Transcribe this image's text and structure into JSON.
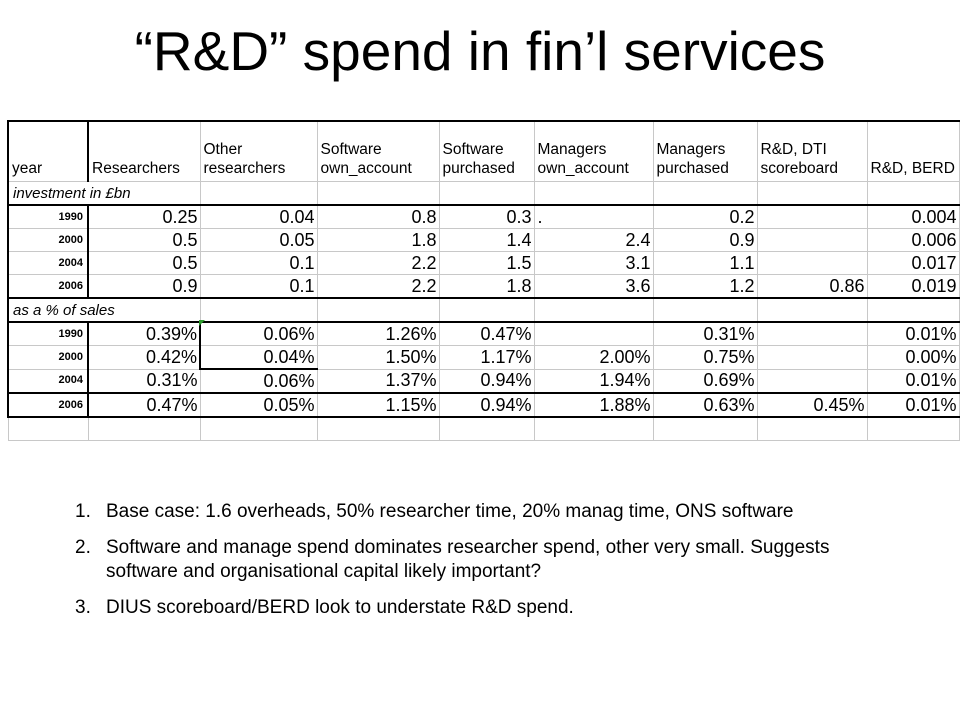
{
  "title": "“R&D” spend in fin’l services",
  "table": {
    "headers": [
      "year",
      "Researchers",
      "Other researchers",
      "Software own_account",
      "Software purchased",
      "Managers own_account",
      "Managers purchased",
      "R&D, DTI scoreboard",
      "R&D, BERD"
    ],
    "sections": [
      {
        "label": "investment in £bn",
        "rows": [
          [
            "1990",
            "0.25",
            "0.04",
            "0.8",
            "0.3",
            ".",
            "0.2",
            "",
            "0.004"
          ],
          [
            "2000",
            "0.5",
            "0.05",
            "1.8",
            "1.4",
            "2.4",
            "0.9",
            "",
            "0.006"
          ],
          [
            "2004",
            "0.5",
            "0.1",
            "2.2",
            "1.5",
            "3.1",
            "1.1",
            "",
            "0.017"
          ],
          [
            "2006",
            "0.9",
            "0.1",
            "2.2",
            "1.8",
            "3.6",
            "1.2",
            "0.86",
            "0.019"
          ]
        ]
      },
      {
        "label": "as a % of sales",
        "rows": [
          [
            "1990",
            "0.39%",
            "0.06%",
            "1.26%",
            "0.47%",
            "",
            "0.31%",
            "",
            "0.01%"
          ],
          [
            "2000",
            "0.42%",
            "0.04%",
            "1.50%",
            "1.17%",
            "2.00%",
            "0.75%",
            "",
            "0.00%"
          ],
          [
            "2004",
            "0.31%",
            "0.06%",
            "1.37%",
            "0.94%",
            "1.94%",
            "0.69%",
            "",
            "0.01%"
          ],
          [
            "2006",
            "0.47%",
            "0.05%",
            "1.15%",
            "0.94%",
            "1.88%",
            "0.63%",
            "0.45%",
            "0.01%"
          ]
        ]
      }
    ]
  },
  "notes": [
    {
      "num": "1.",
      "text": "Base case: 1.6 overheads, 50% researcher time, 20% manag time, ONS software"
    },
    {
      "num": "2.",
      "text": "Software and manage spend dominates researcher spend, other very small.  Suggests software and organisational capital likely important?"
    },
    {
      "num": "3.",
      "text": "DIUS scoreboard/BERD look to understate R&D spend."
    }
  ]
}
